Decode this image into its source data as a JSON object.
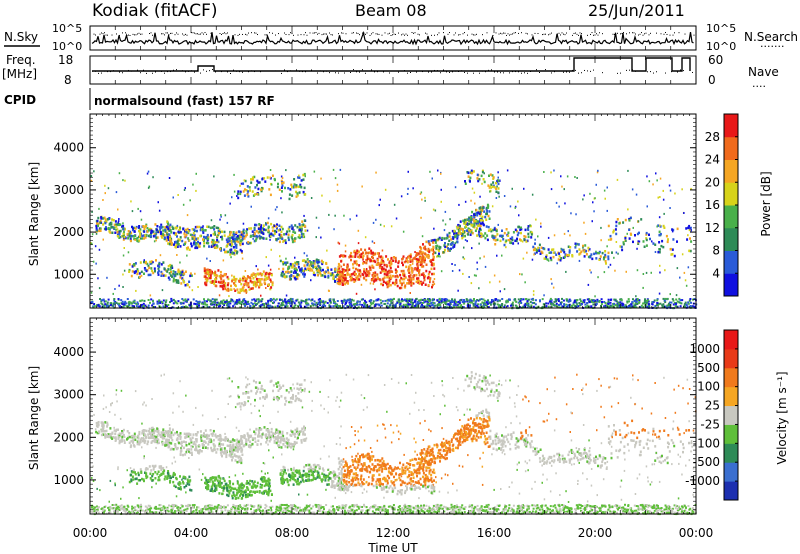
{
  "header": {
    "station": "Kodiak (fitACF)",
    "beam": "Beam 08",
    "date": "25/Jun/2011"
  },
  "noise_panel": {
    "left_label": "N.Sky",
    "right_label": "N.Search",
    "right_dots": "·······",
    "tick_top": "10^5",
    "tick_bottom": "10^0"
  },
  "freq_panel": {
    "left_label_1": "Freq.",
    "left_label_2": "[MHz]",
    "left_tick_top": "18",
    "left_tick_bottom": "8",
    "right_label": "Nave",
    "right_dots": "····",
    "right_tick_top": "60",
    "right_tick_bottom": "0"
  },
  "cpid": {
    "label": "CPID",
    "value": "normalsound (fast) 157 RF"
  },
  "chart_data": [
    {
      "type": "heatmap",
      "panel": "power",
      "xlabel": "",
      "ylabel": "Slant Range [km]",
      "yticks": [
        "1000",
        "2000",
        "3000",
        "4000"
      ],
      "colorbar": {
        "label": "Power [dB]",
        "ticks": [
          "4",
          "8",
          "12",
          "16",
          "20",
          "24",
          "28"
        ],
        "colors": [
          "#1010e0",
          "#2a5bd8",
          "#2e8b57",
          "#49b04a",
          "#d7d31a",
          "#f5a623",
          "#f06a1c",
          "#e81818"
        ]
      }
    },
    {
      "type": "heatmap",
      "panel": "velocity",
      "xlabel": "Time UT",
      "ylabel": "Slant Range [km]",
      "yticks": [
        "1000",
        "2000",
        "3000",
        "4000"
      ],
      "xticks": [
        "00:00",
        "04:00",
        "08:00",
        "12:00",
        "16:00",
        "20:00",
        "00:00"
      ],
      "colorbar": {
        "label": "Velocity [m s⁻¹]",
        "ticks": [
          "1000",
          "500",
          "100",
          "25",
          "-25",
          "-100",
          "-500",
          "-1000"
        ],
        "colors": [
          "#1c2fb0",
          "#3a6fd0",
          "#2e8b57",
          "#5fbf3a",
          "#c8c8c0",
          "#f5a623",
          "#f07a1c",
          "#e83a18",
          "#e81818"
        ]
      }
    }
  ]
}
